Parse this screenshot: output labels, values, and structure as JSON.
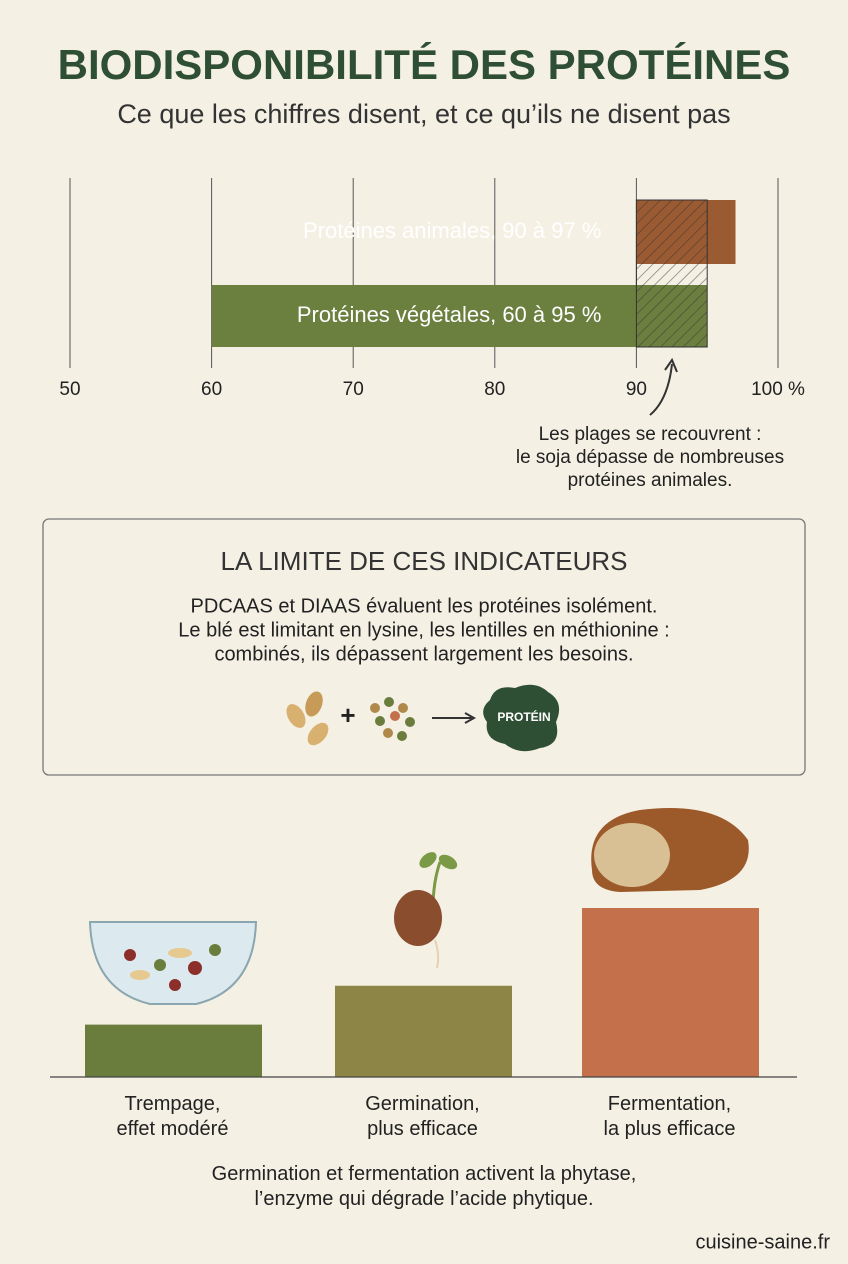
{
  "header": {
    "title": "BIODISPONIBILITÉ DES PROTÉINES",
    "subtitle": "Ce que les chiffres disent, et ce qu’ils ne disent pas"
  },
  "chart_data": [
    {
      "type": "range_bar",
      "categories": [
        "Protéines animales, 90 à 97 %",
        "Protéines végétales, 60 à 95 %"
      ],
      "low": [
        90,
        60
      ],
      "high": [
        97,
        95
      ],
      "colors": [
        "#9a5a32",
        "#6b7f3f"
      ],
      "xlim": [
        50,
        100
      ],
      "xticks": [
        50,
        60,
        70,
        80,
        90,
        {
          "value": 100,
          "label": "100 %"
        }
      ],
      "grid": true,
      "annotation": [
        "Les plages se recouvrent :",
        "le soja dépasse de nombreuses",
        "protéines animales."
      ]
    },
    {
      "type": "bar",
      "categories": [
        "Trempage,\neffet modéré",
        "Germination,\nplus efficace",
        "Fermentation,\nla plus efficace"
      ],
      "values": [
        31,
        54,
        100
      ],
      "colors": [
        "#6b7d3d",
        "#8c8545",
        "#c4704a"
      ],
      "ylim": [
        0,
        100
      ],
      "caption": "Germination et fermentation activent la phytase,\nl’enzyme qui dégrade l’acide phytique."
    }
  ],
  "box": {
    "title": "LA LIMITE DE CES INDICATEURS",
    "lines": [
      "PDCAAS et DIAAS évaluent les protéines isolément.",
      "Le blé est limitant en lysine, les lentilles en méthionine :",
      "combinés, ils dépassent largement les besoins."
    ],
    "icon_label": "PROTÉIN"
  },
  "footer": "cuisine-saine.fr"
}
